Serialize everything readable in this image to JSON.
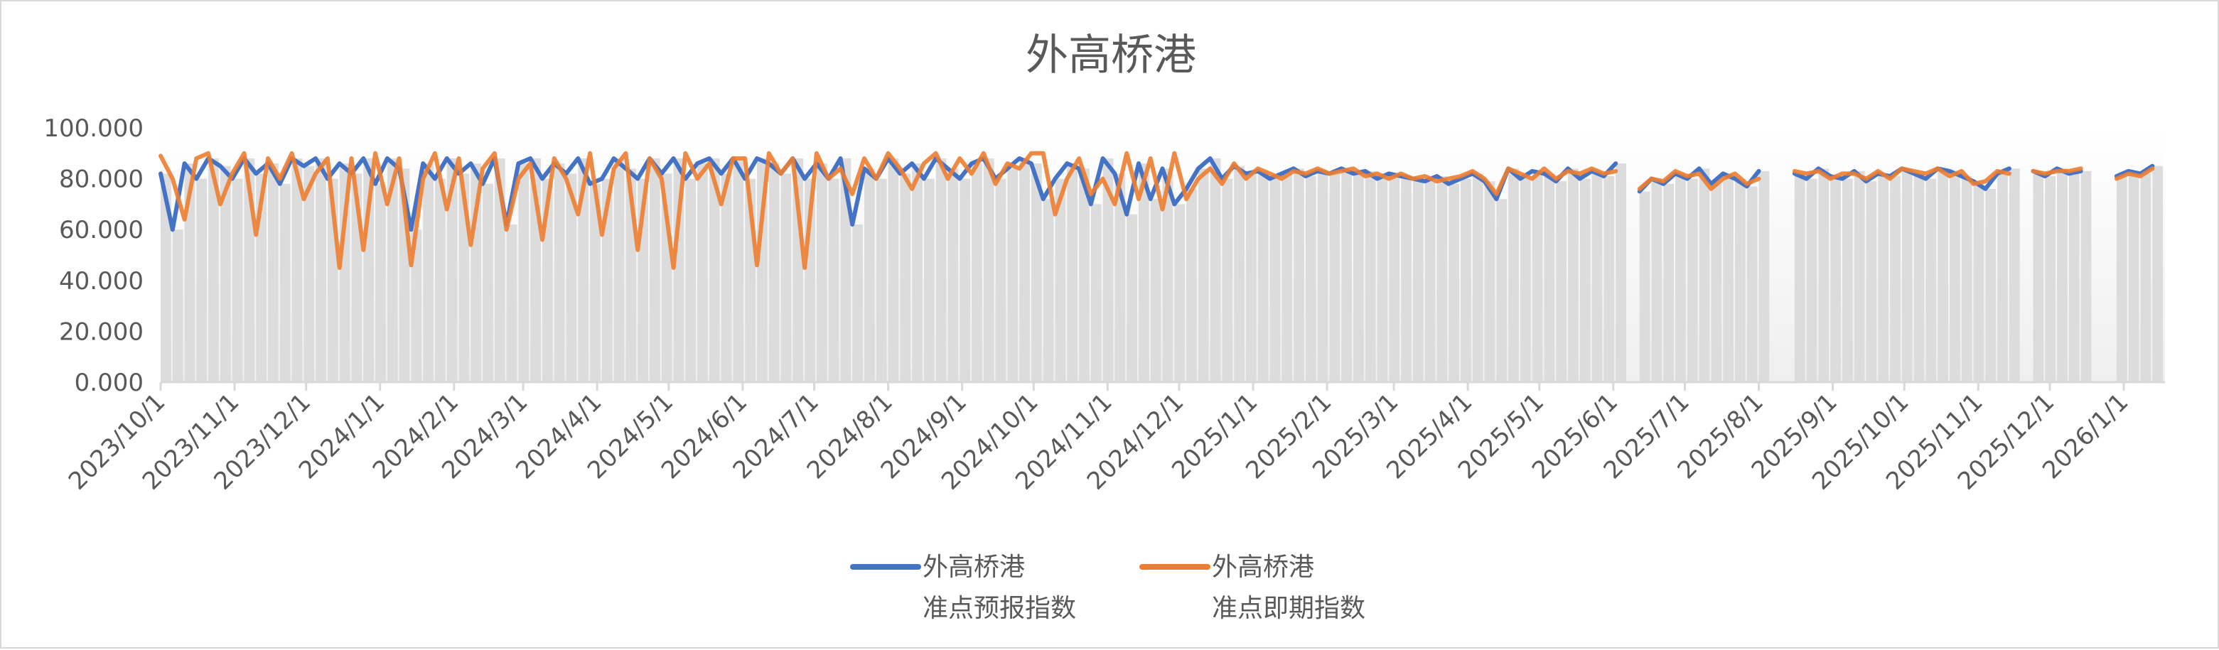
{
  "chart_data": {
    "type": "line",
    "title": "外高桥港",
    "xlabel": "",
    "ylabel": "",
    "ylim": [
      0,
      100
    ],
    "y_ticks": [
      "0.000",
      "20.000",
      "40.000",
      "60.000",
      "80.000",
      "100.000"
    ],
    "x_tick_labels": [
      "2023/10/1",
      "2023/11/1",
      "2023/12/1",
      "2024/1/1",
      "2024/2/1",
      "2024/3/1",
      "2024/4/1",
      "2024/5/1",
      "2024/6/1",
      "2024/7/1",
      "2024/8/1",
      "2024/9/1",
      "2024/10/1",
      "2024/11/1",
      "2024/12/1",
      "2025/1/1",
      "2025/2/1",
      "2025/3/1",
      "2025/4/1",
      "2025/5/1",
      "2025/6/1",
      "2025/7/1",
      "2025/8/1",
      "2025/9/1",
      "2025/10/1",
      "2025/11/1",
      "2025/12/1",
      "2026/1/1"
    ],
    "grid": false,
    "legend_placement": "bottom",
    "background_columns": "gray columns under the forecast series",
    "x": [
      "2023/10/1",
      "2023/10/6",
      "2023/10/11",
      "2023/10/16",
      "2023/10/21",
      "2023/10/26",
      "2023/10/31",
      "2023/11/5",
      "2023/11/10",
      "2023/11/15",
      "2023/11/20",
      "2023/11/25",
      "2023/11/30",
      "2023/12/5",
      "2023/12/10",
      "2023/12/15",
      "2023/12/20",
      "2023/12/25",
      "2023/12/30",
      "2024/1/4",
      "2024/1/9",
      "2024/1/14",
      "2024/1/19",
      "2024/1/24",
      "2024/1/29",
      "2024/2/3",
      "2024/2/8",
      "2024/2/13",
      "2024/2/18",
      "2024/2/23",
      "2024/2/28",
      "2024/3/4",
      "2024/3/9",
      "2024/3/14",
      "2024/3/19",
      "2024/3/24",
      "2024/3/29",
      "2024/4/3",
      "2024/4/8",
      "2024/4/13",
      "2024/4/18",
      "2024/4/23",
      "2024/4/28",
      "2024/5/3",
      "2024/5/8",
      "2024/5/13",
      "2024/5/18",
      "2024/5/23",
      "2024/5/28",
      "2024/6/2",
      "2024/6/7",
      "2024/6/12",
      "2024/6/17",
      "2024/6/22",
      "2024/6/27",
      "2024/7/2",
      "2024/7/7",
      "2024/7/12",
      "2024/7/17",
      "2024/7/22",
      "2024/7/27",
      "2024/8/1",
      "2024/8/6",
      "2024/8/11",
      "2024/8/16",
      "2024/8/21",
      "2024/8/26",
      "2024/8/31",
      "2024/9/5",
      "2024/9/10",
      "2024/9/15",
      "2024/9/20",
      "2024/9/25",
      "2024/9/30",
      "2024/10/5",
      "2024/10/10",
      "2024/10/15",
      "2024/10/20",
      "2024/10/25",
      "2024/10/30",
      "2024/11/4",
      "2024/11/9",
      "2024/11/14",
      "2024/11/19",
      "2024/11/24",
      "2024/11/29",
      "2024/12/4",
      "2024/12/9",
      "2024/12/14",
      "2024/12/19",
      "2024/12/24",
      "2024/12/29",
      "2025/1/3",
      "2025/1/8",
      "2025/1/13",
      "2025/1/18",
      "2025/1/23",
      "2025/1/28",
      "2025/2/2",
      "2025/2/7",
      "2025/2/12",
      "2025/2/17",
      "2025/2/22",
      "2025/2/27",
      "2025/3/4",
      "2025/3/9",
      "2025/3/14",
      "2025/3/19",
      "2025/3/24",
      "2025/3/29",
      "2025/4/3",
      "2025/4/8",
      "2025/4/13",
      "2025/4/18",
      "2025/4/23",
      "2025/4/28",
      "2025/5/3",
      "2025/5/8",
      "2025/5/13",
      "2025/5/18",
      "2025/5/23",
      "2025/5/28",
      "2025/6/2",
      "2025/6/7",
      "2025/6/12",
      "2025/6/17",
      "2025/6/22",
      "2025/6/27",
      "2025/7/2",
      "2025/7/7",
      "2025/7/12",
      "2025/7/17",
      "2025/7/22",
      "2025/7/27",
      "2025/8/1",
      "2025/8/6",
      "2025/8/11",
      "2025/8/16",
      "2025/8/21",
      "2025/8/26",
      "2025/8/31",
      "2025/9/5",
      "2025/9/10",
      "2025/9/15",
      "2025/9/20",
      "2025/9/25",
      "2025/9/30",
      "2025/10/5",
      "2025/10/10",
      "2025/10/15",
      "2025/10/20",
      "2025/10/25",
      "2025/10/30",
      "2025/11/4",
      "2025/11/9",
      "2025/11/14",
      "2025/11/19",
      "2025/11/24",
      "2025/11/29",
      "2025/12/4",
      "2025/12/9",
      "2025/12/14",
      "2025/12/19",
      "2025/12/24",
      "2025/12/29",
      "2026/1/3",
      "2026/1/8",
      "2026/1/13"
    ],
    "series": [
      {
        "name": "外高桥港 准点预报指数",
        "legend_line1": "外高桥港",
        "legend_line2": "准点预报指数",
        "color": "#4472c4",
        "values": [
          82,
          60,
          86,
          80,
          88,
          85,
          80,
          88,
          82,
          86,
          78,
          88,
          85,
          88,
          80,
          86,
          82,
          88,
          78,
          88,
          84,
          60,
          86,
          80,
          88,
          82,
          86,
          78,
          88,
          62,
          86,
          88,
          80,
          86,
          82,
          88,
          78,
          80,
          88,
          84,
          80,
          88,
          82,
          88,
          80,
          86,
          88,
          82,
          88,
          80,
          88,
          86,
          82,
          88,
          80,
          86,
          80,
          88,
          62,
          84,
          80,
          88,
          82,
          86,
          80,
          88,
          84,
          80,
          86,
          88,
          80,
          84,
          88,
          86,
          72,
          80,
          86,
          84,
          70,
          88,
          82,
          66,
          86,
          72,
          84,
          70,
          76,
          84,
          88,
          80,
          85,
          82,
          83,
          80,
          82,
          84,
          81,
          83,
          82,
          84,
          82,
          83,
          80,
          82,
          81,
          80,
          79,
          81,
          78,
          80,
          82,
          79,
          72,
          84,
          80,
          83,
          82,
          79,
          84,
          80,
          83,
          81,
          86,
          null,
          75,
          80,
          78,
          82,
          80,
          84,
          78,
          82,
          80,
          77,
          83,
          null,
          null,
          82,
          80,
          84,
          81,
          80,
          83,
          79,
          82,
          81,
          84,
          82,
          80,
          84,
          83,
          81,
          79,
          76,
          82,
          84,
          null,
          83,
          81,
          84,
          82,
          83,
          null,
          null,
          81,
          83,
          82,
          85
        ]
      },
      {
        "name": "外高桥港 准点即期指数",
        "legend_line1": "外高桥港",
        "legend_line2": "准点即期指数",
        "color": "#ed7d31",
        "values": [
          89,
          80,
          64,
          88,
          90,
          70,
          82,
          90,
          58,
          88,
          80,
          90,
          72,
          82,
          88,
          45,
          88,
          52,
          90,
          70,
          88,
          46,
          80,
          90,
          68,
          88,
          54,
          84,
          90,
          60,
          80,
          86,
          56,
          88,
          80,
          66,
          90,
          58,
          84,
          90,
          52,
          88,
          80,
          45,
          90,
          80,
          86,
          70,
          88,
          88,
          46,
          90,
          82,
          88,
          45,
          90,
          80,
          84,
          74,
          88,
          80,
          90,
          84,
          76,
          86,
          90,
          80,
          88,
          82,
          90,
          78,
          86,
          84,
          90,
          90,
          66,
          80,
          88,
          74,
          80,
          70,
          90,
          72,
          88,
          68,
          90,
          72,
          80,
          84,
          78,
          86,
          80,
          84,
          82,
          80,
          83,
          82,
          84,
          82,
          83,
          84,
          81,
          82,
          80,
          82,
          80,
          81,
          79,
          80,
          81,
          83,
          80,
          74,
          84,
          82,
          80,
          84,
          80,
          83,
          82,
          84,
          82,
          83,
          null,
          76,
          80,
          79,
          83,
          81,
          82,
          76,
          80,
          82,
          78,
          80,
          null,
          null,
          83,
          82,
          83,
          80,
          82,
          82,
          80,
          83,
          80,
          84,
          83,
          82,
          84,
          81,
          83,
          78,
          79,
          83,
          82,
          null,
          83,
          82,
          83,
          83,
          84,
          null,
          null,
          80,
          82,
          81,
          84
        ]
      }
    ]
  }
}
